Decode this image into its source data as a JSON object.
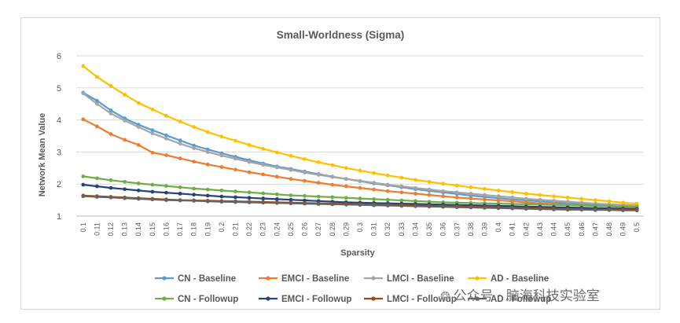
{
  "chart_data": {
    "type": "line",
    "title": "Small-Worldness (Sigma)",
    "xlabel": "Sparsity",
    "ylabel": "Network Mean Value",
    "ylim": [
      1,
      6
    ],
    "yticks": [
      "1",
      "2",
      "3",
      "4",
      "5",
      "6"
    ],
    "grid": true,
    "legend_position": "bottom",
    "x": [
      "0.1",
      "0.11",
      "0.12",
      "0.13",
      "0.14",
      "0.15",
      "0.16",
      "0.17",
      "0.18",
      "0.19",
      "0.2",
      "0.21",
      "0.22",
      "0.23",
      "0.24",
      "0.25",
      "0.26",
      "0.27",
      "0.28",
      "0.29",
      "0.3",
      "0.31",
      "0.32",
      "0.33",
      "0.34",
      "0.35",
      "0.36",
      "0.37",
      "0.38",
      "0.39",
      "0.4",
      "0.41",
      "0.42",
      "0.43",
      "0.44",
      "0.45",
      "0.46",
      "0.47",
      "0.48",
      "0.49",
      "0.5"
    ],
    "series": [
      {
        "name": "CN - Baseline",
        "color": "#5b9bd5",
        "values": [
          4.85,
          4.6,
          4.3,
          4.05,
          3.85,
          3.68,
          3.52,
          3.36,
          3.2,
          3.08,
          2.96,
          2.85,
          2.74,
          2.64,
          2.55,
          2.47,
          2.39,
          2.31,
          2.23,
          2.16,
          2.09,
          2.02,
          1.96,
          1.9,
          1.84,
          1.79,
          1.74,
          1.69,
          1.64,
          1.6,
          1.56,
          1.52,
          1.49,
          1.46,
          1.43,
          1.4,
          1.38,
          1.36,
          1.34,
          1.32,
          1.3
        ]
      },
      {
        "name": "EMCI - Baseline",
        "color": "#ed7d31",
        "values": [
          4.02,
          3.8,
          3.56,
          3.38,
          3.22,
          2.98,
          2.9,
          2.8,
          2.7,
          2.61,
          2.53,
          2.45,
          2.37,
          2.3,
          2.23,
          2.16,
          2.1,
          2.04,
          1.98,
          1.93,
          1.88,
          1.83,
          1.78,
          1.74,
          1.7,
          1.66,
          1.62,
          1.58,
          1.55,
          1.52,
          1.49,
          1.46,
          1.43,
          1.4,
          1.38,
          1.36,
          1.34,
          1.32,
          1.3,
          1.28,
          1.27
        ]
      },
      {
        "name": "LMCI - Baseline",
        "color": "#a5a5a5",
        "values": [
          4.83,
          4.5,
          4.2,
          3.98,
          3.78,
          3.58,
          3.42,
          3.26,
          3.12,
          3.0,
          2.89,
          2.79,
          2.69,
          2.6,
          2.52,
          2.44,
          2.36,
          2.29,
          2.22,
          2.16,
          2.1,
          2.04,
          1.98,
          1.93,
          1.88,
          1.83,
          1.78,
          1.74,
          1.7,
          1.66,
          1.62,
          1.58,
          1.54,
          1.51,
          1.48,
          1.45,
          1.42,
          1.39,
          1.37,
          1.35,
          1.33
        ]
      },
      {
        "name": "AD - Baseline",
        "color": "#ffc000",
        "values": [
          5.68,
          5.34,
          5.06,
          4.79,
          4.53,
          4.33,
          4.13,
          3.95,
          3.78,
          3.62,
          3.48,
          3.35,
          3.22,
          3.1,
          2.99,
          2.88,
          2.78,
          2.68,
          2.59,
          2.5,
          2.42,
          2.34,
          2.27,
          2.2,
          2.13,
          2.07,
          2.01,
          1.95,
          1.9,
          1.85,
          1.8,
          1.75,
          1.7,
          1.66,
          1.62,
          1.58,
          1.54,
          1.5,
          1.46,
          1.42,
          1.39
        ]
      },
      {
        "name": "CN - Followup",
        "color": "#70ad47",
        "values": [
          2.24,
          2.18,
          2.12,
          2.07,
          2.02,
          1.98,
          1.94,
          1.9,
          1.86,
          1.83,
          1.8,
          1.77,
          1.74,
          1.71,
          1.68,
          1.65,
          1.63,
          1.61,
          1.59,
          1.57,
          1.55,
          1.53,
          1.51,
          1.49,
          1.47,
          1.45,
          1.43,
          1.42,
          1.41,
          1.4,
          1.39,
          1.38,
          1.37,
          1.36,
          1.35,
          1.34,
          1.33,
          1.32,
          1.31,
          1.3,
          1.29
        ]
      },
      {
        "name": "EMCI - Followup",
        "color": "#264478",
        "values": [
          1.98,
          1.93,
          1.88,
          1.84,
          1.8,
          1.76,
          1.73,
          1.7,
          1.67,
          1.64,
          1.61,
          1.59,
          1.57,
          1.55,
          1.53,
          1.51,
          1.49,
          1.47,
          1.45,
          1.43,
          1.42,
          1.41,
          1.4,
          1.39,
          1.38,
          1.37,
          1.36,
          1.35,
          1.34,
          1.33,
          1.32,
          1.31,
          1.3,
          1.29,
          1.28,
          1.27,
          1.26,
          1.25,
          1.24,
          1.23,
          1.22
        ]
      },
      {
        "name": "LMCI - Followup",
        "color": "#9e480e",
        "values": [
          1.64,
          1.62,
          1.6,
          1.58,
          1.56,
          1.54,
          1.52,
          1.5,
          1.49,
          1.48,
          1.47,
          1.46,
          1.45,
          1.44,
          1.43,
          1.42,
          1.41,
          1.4,
          1.39,
          1.38,
          1.37,
          1.36,
          1.35,
          1.34,
          1.33,
          1.32,
          1.31,
          1.3,
          1.29,
          1.28,
          1.27,
          1.26,
          1.25,
          1.24,
          1.23,
          1.22,
          1.21,
          1.2,
          1.2,
          1.19,
          1.19
        ]
      },
      {
        "name": "AD - Followup",
        "color": "#636363",
        "values": [
          1.62,
          1.6,
          1.58,
          1.56,
          1.54,
          1.52,
          1.5,
          1.49,
          1.48,
          1.46,
          1.45,
          1.44,
          1.43,
          1.42,
          1.41,
          1.4,
          1.39,
          1.38,
          1.37,
          1.36,
          1.35,
          1.34,
          1.33,
          1.32,
          1.31,
          1.3,
          1.29,
          1.28,
          1.27,
          1.26,
          1.25,
          1.24,
          1.23,
          1.22,
          1.21,
          1.2,
          1.2,
          1.19,
          1.19,
          1.18,
          1.18
        ]
      }
    ]
  },
  "watermark": {
    "icon": "wechat-icon",
    "text": "公众号 · 脑海科技实验室"
  }
}
